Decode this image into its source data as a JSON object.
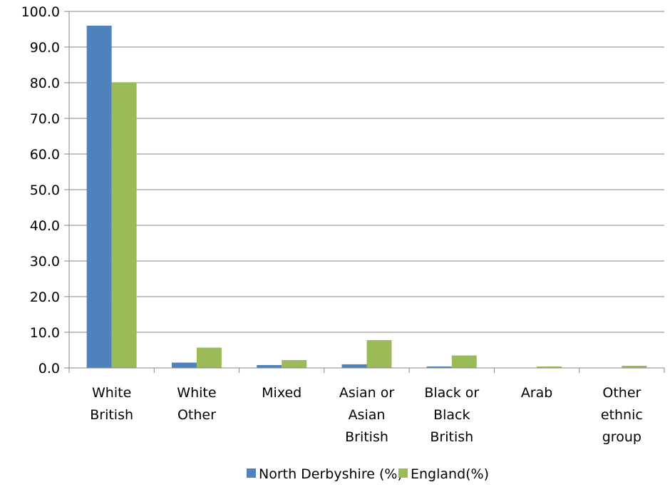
{
  "chart_data": {
    "type": "bar",
    "categories": [
      [
        "White",
        "British"
      ],
      [
        "White",
        "Other"
      ],
      [
        "Mixed"
      ],
      [
        "Asian or",
        "Asian",
        "British"
      ],
      [
        "Black or",
        "Black",
        "British"
      ],
      [
        "Arab"
      ],
      [
        "Other",
        "ethnic",
        "group"
      ]
    ],
    "series": [
      {
        "name": "North Derbyshire (%)",
        "color": "#4F81BD",
        "values": [
          96.0,
          1.5,
          0.8,
          1.0,
          0.4,
          0.0,
          0.1
        ]
      },
      {
        "name": "England(%)",
        "color": "#9BBB59",
        "values": [
          80.0,
          5.7,
          2.2,
          7.8,
          3.5,
          0.4,
          0.6
        ]
      }
    ],
    "ylim": [
      0,
      100
    ],
    "yticks": [
      "0.0",
      "10.0",
      "20.0",
      "30.0",
      "40.0",
      "50.0",
      "60.0",
      "70.0",
      "80.0",
      "90.0",
      "100.0"
    ],
    "grid": true,
    "legend_position": "bottom"
  }
}
